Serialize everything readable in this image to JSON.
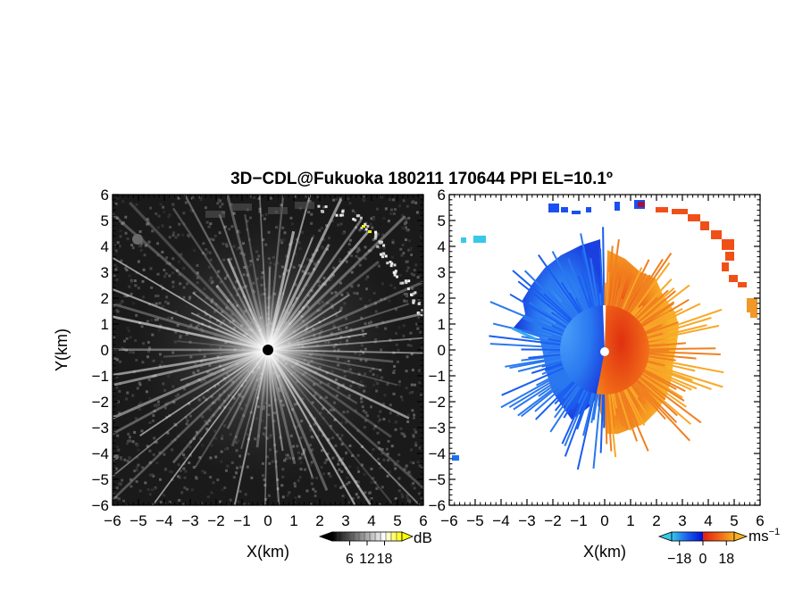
{
  "title": "3D−CDL@Fukuoka 180211 170644 PPI EL=10.1º",
  "chart_data": [
    {
      "type": "heatmap",
      "panel": "left",
      "quantity": "SNR",
      "xlabel": "X(km)",
      "ylabel": "Y(km)",
      "xlim": [
        -6,
        6
      ],
      "ylim": [
        -6,
        6
      ],
      "x_ticks": [
        "−6",
        "−5",
        "−4",
        "−3",
        "−2",
        "−1",
        "0",
        "1",
        "2",
        "3",
        "4",
        "5",
        "6"
      ],
      "y_ticks": [
        "6",
        "5",
        "4",
        "3",
        "2",
        "1",
        "0",
        "−1",
        "−2",
        "−3",
        "−4",
        "−5",
        "−6"
      ],
      "colorbar": {
        "unit": "dB",
        "ticks": [
          "6",
          "12",
          "18"
        ],
        "range": [
          0,
          24
        ],
        "colors": [
          "#000000",
          "#ffffff",
          "#ffff00"
        ]
      },
      "background": "#1a1a1a",
      "radar_center": [
        0,
        0
      ]
    },
    {
      "type": "heatmap",
      "panel": "right",
      "quantity": "Doppler velocity",
      "xlabel": "X(km)",
      "xlim": [
        -6,
        6
      ],
      "ylim": [
        -6,
        6
      ],
      "x_ticks": [
        "−6",
        "−5",
        "−4",
        "−3",
        "−2",
        "−1",
        "0",
        "1",
        "2",
        "3",
        "4",
        "5",
        "6"
      ],
      "y_ticks": [
        "6",
        "5",
        "4",
        "3",
        "2",
        "1",
        "0",
        "−1",
        "−2",
        "−3",
        "−4",
        "−5",
        "−6"
      ],
      "colorbar": {
        "unit": "ms",
        "unit_exp": "−1",
        "ticks": [
          "−18",
          "0",
          "18"
        ],
        "range": [
          -24,
          24
        ],
        "colors": [
          "#38c8e8",
          "#1a5ef0",
          "#0010d0",
          "#e02010",
          "#f06018",
          "#f8b020"
        ]
      },
      "background": "#ffffff",
      "radar_center": [
        0,
        0
      ]
    }
  ]
}
